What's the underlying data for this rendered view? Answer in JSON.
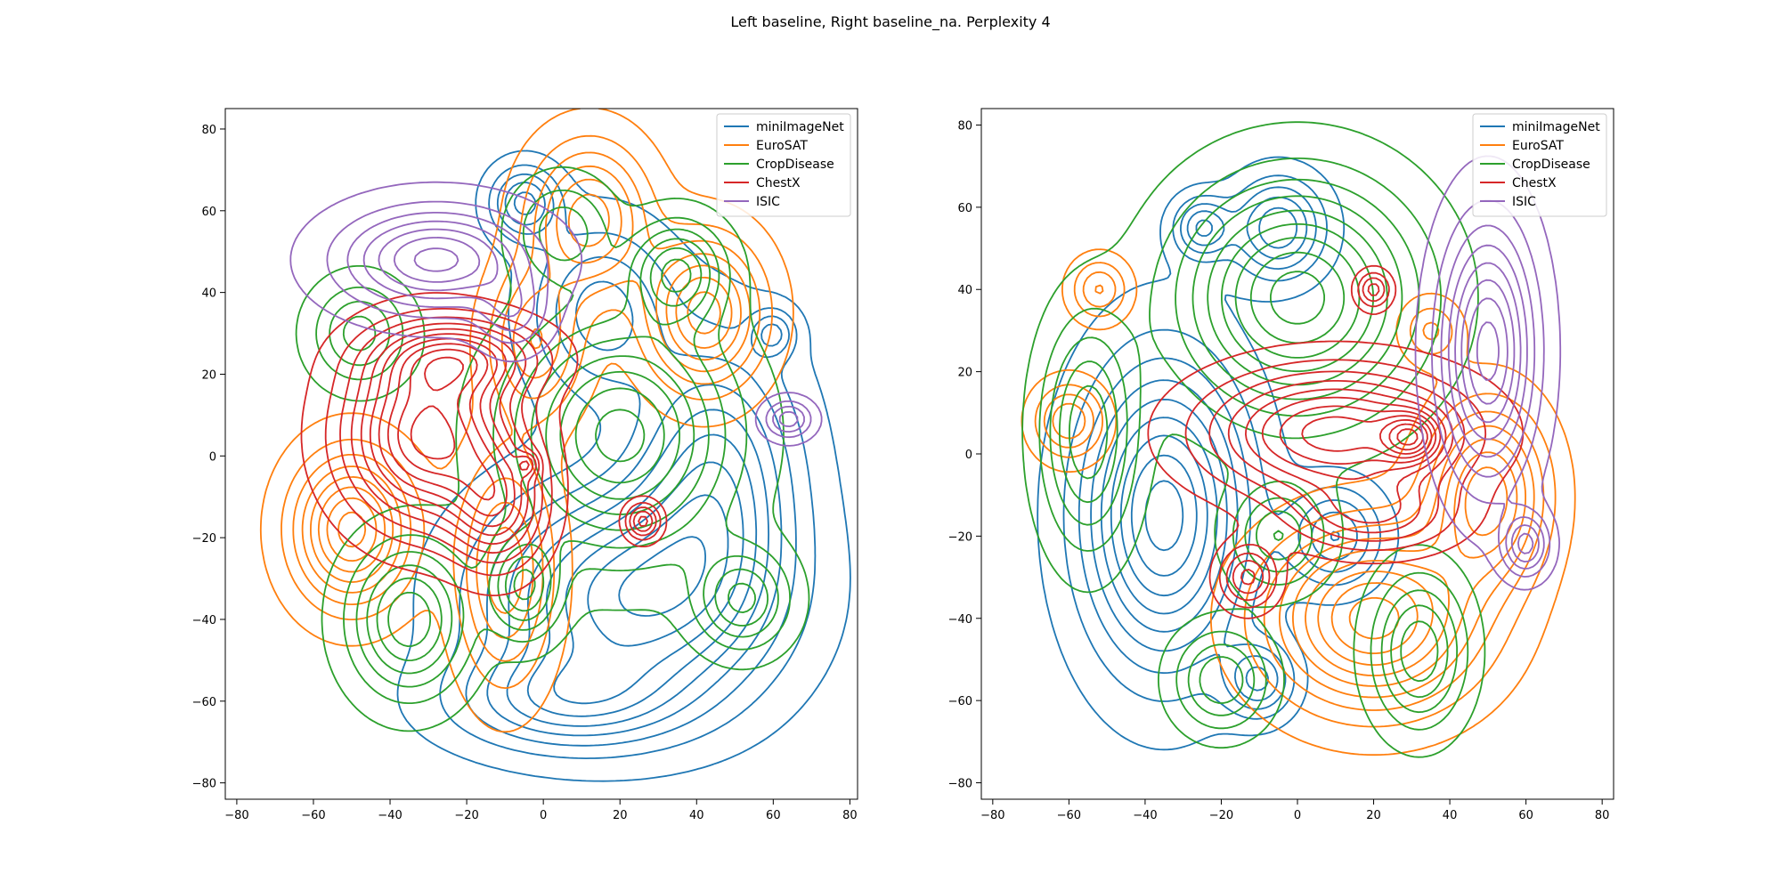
{
  "figure": {
    "title": "Left baseline, Right baseline_na. Perplexity 4"
  },
  "colors": {
    "miniImageNet": "#1f77b4",
    "EuroSAT": "#ff7f0e",
    "CropDisease": "#2ca02c",
    "ChestX": "#d62728",
    "ISIC": "#9467bd"
  },
  "chart_data": [
    {
      "type": "contour",
      "title": "",
      "xlabel": "",
      "ylabel": "",
      "xlim": [
        -83,
        82
      ],
      "ylim": [
        -84,
        85
      ],
      "xticks": [
        -80,
        -60,
        -40,
        -20,
        0,
        20,
        40,
        60,
        80
      ],
      "yticks": [
        -80,
        -60,
        -40,
        -20,
        0,
        20,
        40,
        60,
        80
      ],
      "legend": {
        "position": "top-right",
        "entries": [
          "miniImageNet",
          "EuroSAT",
          "CropDisease",
          "ChestX",
          "ISIC"
        ]
      },
      "series": [
        {
          "name": "miniImageNet",
          "color": "#1f77b4",
          "levels": 9,
          "blobs": [
            {
              "cx": 22,
              "cy": -35,
              "sx": 24,
              "sy": 18,
              "w": 1.0
            },
            {
              "cx": 45,
              "cy": -5,
              "sx": 14,
              "sy": 22,
              "w": 0.7
            },
            {
              "cx": -5,
              "cy": 62,
              "sx": 6,
              "sy": 6,
              "w": 0.6
            },
            {
              "cx": 15,
              "cy": 35,
              "sx": 12,
              "sy": 14,
              "w": 0.5
            },
            {
              "cx": 5,
              "cy": -60,
              "sx": 20,
              "sy": 8,
              "w": 0.5
            },
            {
              "cx": 60,
              "cy": 30,
              "sx": 4,
              "sy": 4,
              "w": 0.4
            }
          ]
        },
        {
          "name": "EuroSAT",
          "color": "#ff7f0e",
          "levels": 8,
          "blobs": [
            {
              "cx": -50,
              "cy": -18,
              "sx": 10,
              "sy": 12,
              "w": 0.9
            },
            {
              "cx": 12,
              "cy": 58,
              "sx": 10,
              "sy": 12,
              "w": 0.7
            },
            {
              "cx": 42,
              "cy": 35,
              "sx": 10,
              "sy": 12,
              "w": 0.8
            },
            {
              "cx": -10,
              "cy": -28,
              "sx": 8,
              "sy": 18,
              "w": 0.6
            },
            {
              "cx": -2,
              "cy": 28,
              "sx": 8,
              "sy": 12,
              "w": 0.5
            }
          ]
        },
        {
          "name": "CropDisease",
          "color": "#2ca02c",
          "levels": 8,
          "blobs": [
            {
              "cx": 20,
              "cy": 5,
              "sx": 18,
              "sy": 18,
              "w": 1.0
            },
            {
              "cx": 35,
              "cy": 45,
              "sx": 8,
              "sy": 8,
              "w": 0.7
            },
            {
              "cx": -35,
              "cy": -40,
              "sx": 10,
              "sy": 12,
              "w": 0.8
            },
            {
              "cx": -5,
              "cy": -32,
              "sx": 6,
              "sy": 8,
              "w": 0.7
            },
            {
              "cx": 52,
              "cy": -35,
              "sx": 8,
              "sy": 8,
              "w": 0.6
            },
            {
              "cx": -48,
              "cy": 30,
              "sx": 8,
              "sy": 8,
              "w": 0.5
            },
            {
              "cx": 5,
              "cy": 55,
              "sx": 8,
              "sy": 8,
              "w": 0.4
            }
          ]
        },
        {
          "name": "ChestX",
          "color": "#d62728",
          "levels": 10,
          "blobs": [
            {
              "cx": -30,
              "cy": 5,
              "sx": 14,
              "sy": 14,
              "w": 1.0
            },
            {
              "cx": -12,
              "cy": -12,
              "sx": 8,
              "sy": 10,
              "w": 0.6
            },
            {
              "cx": -22,
              "cy": 24,
              "sx": 14,
              "sy": 6,
              "w": 0.6
            },
            {
              "cx": 26,
              "cy": -16,
              "sx": 3,
              "sy": 3,
              "w": 0.5
            },
            {
              "cx": -4,
              "cy": -2,
              "sx": 2,
              "sy": 2,
              "w": 0.3
            }
          ]
        },
        {
          "name": "ISIC",
          "color": "#9467bd",
          "levels": 7,
          "blobs": [
            {
              "cx": -28,
              "cy": 48,
              "sx": 16,
              "sy": 8,
              "w": 1.0
            },
            {
              "cx": 64,
              "cy": 9,
              "sx": 4,
              "sy": 3,
              "w": 0.6
            },
            {
              "cx": -8,
              "cy": 35,
              "sx": 6,
              "sy": 6,
              "w": 0.4
            }
          ]
        }
      ]
    },
    {
      "type": "contour",
      "title": "",
      "xlabel": "",
      "ylabel": "",
      "xlim": [
        -83,
        83
      ],
      "ylim": [
        -84,
        84
      ],
      "xticks": [
        -80,
        -60,
        -40,
        -20,
        0,
        20,
        40,
        60,
        80
      ],
      "yticks": [
        -80,
        -60,
        -40,
        -20,
        0,
        20,
        40,
        60,
        80
      ],
      "legend": {
        "position": "top-right",
        "entries": [
          "miniImageNet",
          "EuroSAT",
          "CropDisease",
          "ChestX",
          "ISIC"
        ]
      },
      "series": [
        {
          "name": "miniImageNet",
          "color": "#1f77b4",
          "levels": 9,
          "blobs": [
            {
              "cx": -35,
              "cy": -15,
              "sx": 14,
              "sy": 24,
              "w": 1.0
            },
            {
              "cx": -5,
              "cy": 55,
              "sx": 8,
              "sy": 8,
              "w": 0.6
            },
            {
              "cx": -25,
              "cy": 55,
              "sx": 5,
              "sy": 5,
              "w": 0.5
            },
            {
              "cx": -10,
              "cy": -55,
              "sx": 6,
              "sy": 6,
              "w": 0.5
            },
            {
              "cx": 10,
              "cy": -20,
              "sx": 8,
              "sy": 8,
              "w": 0.5
            }
          ]
        },
        {
          "name": "EuroSAT",
          "color": "#ff7f0e",
          "levels": 9,
          "blobs": [
            {
              "cx": 20,
              "cy": -40,
              "sx": 18,
              "sy": 14,
              "w": 1.0
            },
            {
              "cx": 50,
              "cy": -10,
              "sx": 10,
              "sy": 14,
              "w": 0.8
            },
            {
              "cx": -60,
              "cy": 8,
              "sx": 6,
              "sy": 6,
              "w": 0.5
            },
            {
              "cx": -52,
              "cy": 40,
              "sx": 5,
              "sy": 5,
              "w": 0.4
            },
            {
              "cx": 35,
              "cy": 30,
              "sx": 5,
              "sy": 5,
              "w": 0.3
            }
          ]
        },
        {
          "name": "CropDisease",
          "color": "#2ca02c",
          "levels": 9,
          "blobs": [
            {
              "cx": 0,
              "cy": 38,
              "sx": 20,
              "sy": 18,
              "w": 1.0
            },
            {
              "cx": -55,
              "cy": 5,
              "sx": 8,
              "sy": 18,
              "w": 0.6
            },
            {
              "cx": 32,
              "cy": -48,
              "sx": 8,
              "sy": 12,
              "w": 0.6
            },
            {
              "cx": -20,
              "cy": -55,
              "sx": 8,
              "sy": 8,
              "w": 0.5
            },
            {
              "cx": -5,
              "cy": -20,
              "sx": 8,
              "sy": 8,
              "w": 0.5
            }
          ]
        },
        {
          "name": "ChestX",
          "color": "#d62728",
          "levels": 11,
          "blobs": [
            {
              "cx": 10,
              "cy": 5,
              "sx": 22,
              "sy": 10,
              "w": 1.0
            },
            {
              "cx": 30,
              "cy": 4,
              "sx": 5,
              "sy": 4,
              "w": 0.7
            },
            {
              "cx": -13,
              "cy": -30,
              "sx": 5,
              "sy": 5,
              "w": 0.6
            },
            {
              "cx": 20,
              "cy": 40,
              "sx": 3,
              "sy": 3,
              "w": 0.5
            },
            {
              "cx": 20,
              "cy": -15,
              "sx": 14,
              "sy": 6,
              "w": 0.5
            }
          ]
        },
        {
          "name": "ISIC",
          "color": "#9467bd",
          "levels": 8,
          "blobs": [
            {
              "cx": 50,
              "cy": 25,
              "sx": 8,
              "sy": 20,
              "w": 1.0
            },
            {
              "cx": 60,
              "cy": -22,
              "sx": 4,
              "sy": 5,
              "w": 0.6
            }
          ]
        }
      ]
    }
  ]
}
